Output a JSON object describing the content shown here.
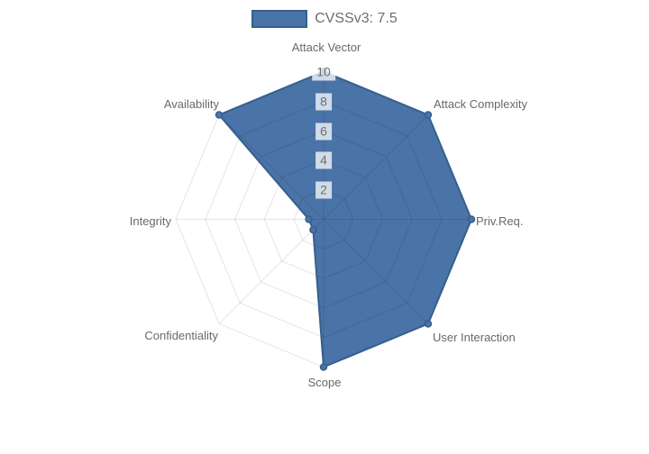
{
  "chart_data": {
    "type": "radar",
    "title": "",
    "legend_position": "top",
    "grid": true,
    "rlim": [
      0,
      10
    ],
    "ticks": [
      2,
      4,
      6,
      8,
      10
    ],
    "categories": [
      "Attack Vector",
      "Attack Complexity",
      "Priv.Req.",
      "User Interaction",
      "Scope",
      "Confidentiality",
      "Integrity",
      "Availability"
    ],
    "series": [
      {
        "name": "CVSSv3: 7.5",
        "values": [
          10,
          10,
          10,
          10,
          10,
          1,
          1,
          10
        ]
      }
    ],
    "colors": {
      "fill": "#4a73a7",
      "border": "#35608d",
      "grid": "rgba(0,0,0,0.10)",
      "label_text": "#696969",
      "tick_text": "#6e6e6e",
      "tick_backdrop": "rgba(255,255,255,0.75)",
      "background": "#ffffff"
    }
  }
}
